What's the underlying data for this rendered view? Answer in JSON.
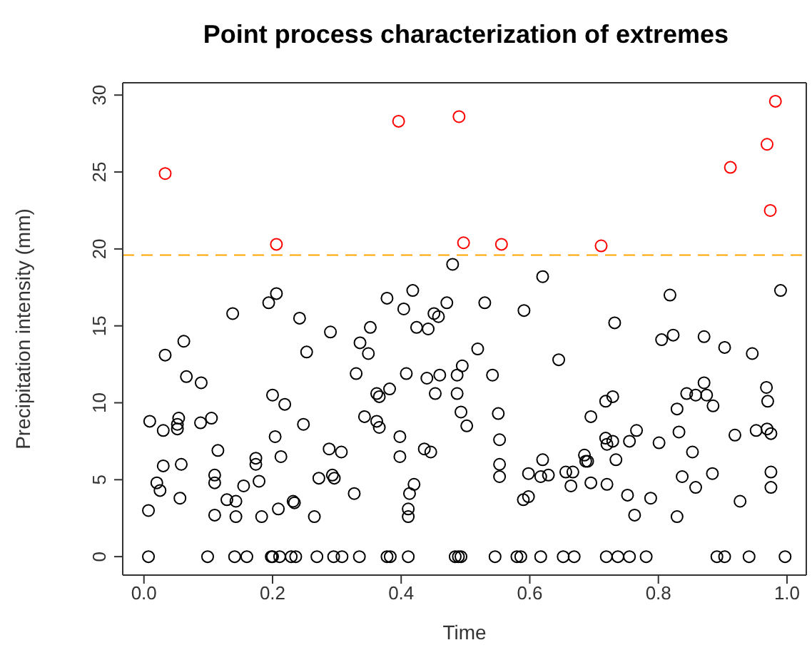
{
  "chart_data": {
    "type": "scatter",
    "title": "Point process characterization of extremes",
    "xlabel": "Time",
    "ylabel": "Precipitation intensity (mm)",
    "xlim": [
      -0.033,
      1.03
    ],
    "ylim": [
      -1.2,
      30.8
    ],
    "xticks": [
      {
        "value": 0,
        "label": "0.0"
      },
      {
        "value": 0.2,
        "label": "0.2"
      },
      {
        "value": 0.4,
        "label": "0.4"
      },
      {
        "value": 0.6,
        "label": "0.6"
      },
      {
        "value": 0.8,
        "label": "0.8"
      },
      {
        "value": 1,
        "label": "1.0"
      }
    ],
    "yticks": [
      0,
      5,
      10,
      15,
      20,
      25,
      30
    ],
    "legend": false,
    "marker": "circle",
    "ref_lines": [
      {
        "axis": "y",
        "value": 19.6,
        "color": "#ffa500",
        "line_style": "dashed"
      }
    ],
    "series": [
      {
        "color": "#000000",
        "x": [
          0.48,
          0.138,
          0.194,
          0.206,
          0.242,
          0.29,
          0.336,
          0.352,
          0.378,
          0.404,
          0.418,
          0.424,
          0.442,
          0.451,
          0.458,
          0.471,
          0.062,
          0.033,
          0.253,
          0.349,
          0.53,
          0.519,
          0.591,
          0.62,
          0.645,
          0.732,
          0.818,
          0.805,
          0.823,
          0.871,
          0.903,
          0.946,
          0.99,
          0.009,
          0.03,
          0.052,
          0.052,
          0.054,
          0.066,
          0.089,
          0.088,
          0.105,
          0.03,
          0.058,
          0.02,
          0.025,
          0.056,
          0.007,
          0.115,
          0.11,
          0.11,
          0.11,
          0.129,
          0.143,
          0.143,
          0.155,
          0.174,
          0.174,
          0.179,
          0.183,
          0.2,
          0.219,
          0.204,
          0.213,
          0.209,
          0.232,
          0.234,
          0.248,
          0.265,
          0.272,
          0.288,
          0.293,
          0.296,
          0.307,
          0.327,
          0.33,
          0.343,
          0.362,
          0.366,
          0.362,
          0.366,
          0.382,
          0.408,
          0.44,
          0.453,
          0.46,
          0.398,
          0.398,
          0.436,
          0.446,
          0.42,
          0.413,
          0.411,
          0.411,
          0.487,
          0.495,
          0.487,
          0.493,
          0.502,
          0.542,
          0.551,
          0.553,
          0.553,
          0.553,
          0.59,
          0.598,
          0.598,
          0.617,
          0.629,
          0.62,
          0.656,
          0.667,
          0.664,
          0.685,
          0.687,
          0.69,
          0.695,
          0.695,
          0.72,
          0.718,
          0.729,
          0.718,
          0.72,
          0.729,
          0.734,
          0.755,
          0.766,
          0.752,
          0.763,
          0.788,
          0.801,
          0.829,
          0.832,
          0.853,
          0.837,
          0.858,
          0.829,
          0.844,
          0.858,
          0.871,
          0.875,
          0.885,
          0.884,
          0.919,
          0.927,
          0.952,
          0.968,
          0.97,
          0.969,
          0.975,
          0.975,
          0.975,
          0.007,
          0.099,
          0.141,
          0.16,
          0.198,
          0.2,
          0.211,
          0.229,
          0.236,
          0.269,
          0.295,
          0.308,
          0.335,
          0.378,
          0.383,
          0.411,
          0.484,
          0.489,
          0.493,
          0.546,
          0.58,
          0.586,
          0.617,
          0.652,
          0.669,
          0.719,
          0.737,
          0.755,
          0.781,
          0.891,
          0.903,
          0.941,
          0.997
        ],
        "values": [
          19.0,
          15.8,
          16.5,
          17.1,
          15.5,
          14.6,
          13.9,
          14.9,
          16.8,
          16.1,
          17.3,
          14.9,
          14.8,
          15.8,
          15.6,
          16.5,
          14.0,
          13.1,
          13.3,
          13.2,
          16.5,
          13.5,
          16.0,
          18.2,
          12.8,
          15.2,
          17.0,
          14.1,
          14.4,
          14.3,
          13.6,
          13.2,
          17.3,
          8.8,
          8.2,
          8.3,
          8.6,
          9.0,
          11.7,
          11.3,
          8.7,
          9.0,
          5.9,
          6.0,
          4.8,
          4.3,
          3.8,
          3.0,
          6.9,
          5.3,
          4.8,
          2.7,
          3.7,
          3.6,
          2.6,
          4.6,
          6.0,
          6.4,
          4.9,
          2.6,
          10.5,
          9.9,
          7.8,
          6.5,
          3.1,
          3.6,
          3.5,
          8.6,
          2.6,
          5.1,
          7.0,
          5.3,
          5.1,
          6.8,
          4.1,
          11.9,
          9.1,
          8.8,
          8.4,
          10.6,
          10.4,
          10.9,
          11.9,
          11.6,
          10.6,
          11.8,
          7.8,
          6.5,
          7.0,
          6.8,
          4.7,
          4.1,
          3.1,
          2.6,
          11.8,
          12.4,
          10.6,
          9.4,
          8.5,
          11.8,
          9.3,
          7.6,
          6.0,
          5.2,
          3.7,
          3.9,
          5.4,
          5.2,
          5.3,
          6.3,
          5.5,
          5.5,
          4.6,
          6.6,
          6.2,
          6.2,
          9.1,
          4.8,
          4.7,
          10.1,
          10.4,
          7.7,
          7.3,
          7.5,
          6.3,
          7.5,
          8.2,
          4.0,
          2.7,
          3.8,
          7.4,
          9.6,
          8.1,
          6.8,
          5.2,
          4.5,
          2.6,
          10.6,
          10.5,
          11.3,
          10.5,
          9.8,
          5.4,
          7.9,
          3.6,
          8.2,
          11.0,
          10.1,
          8.3,
          8.0,
          5.5,
          4.5,
          0,
          0,
          0,
          0,
          0,
          0,
          0,
          0,
          0,
          0,
          0,
          0,
          0,
          0,
          0,
          0,
          0,
          0,
          0,
          0,
          0,
          0,
          0,
          0,
          0,
          0,
          0,
          0,
          0,
          0,
          0,
          0,
          0
        ]
      },
      {
        "color": "#ff0000",
        "x": [
          0.033,
          0.206,
          0.396,
          0.49,
          0.497,
          0.556,
          0.711,
          0.912,
          0.969,
          0.974,
          0.982
        ],
        "values": [
          24.9,
          20.3,
          28.3,
          28.6,
          20.4,
          20.3,
          20.2,
          25.3,
          26.8,
          22.5,
          29.6
        ]
      }
    ]
  }
}
